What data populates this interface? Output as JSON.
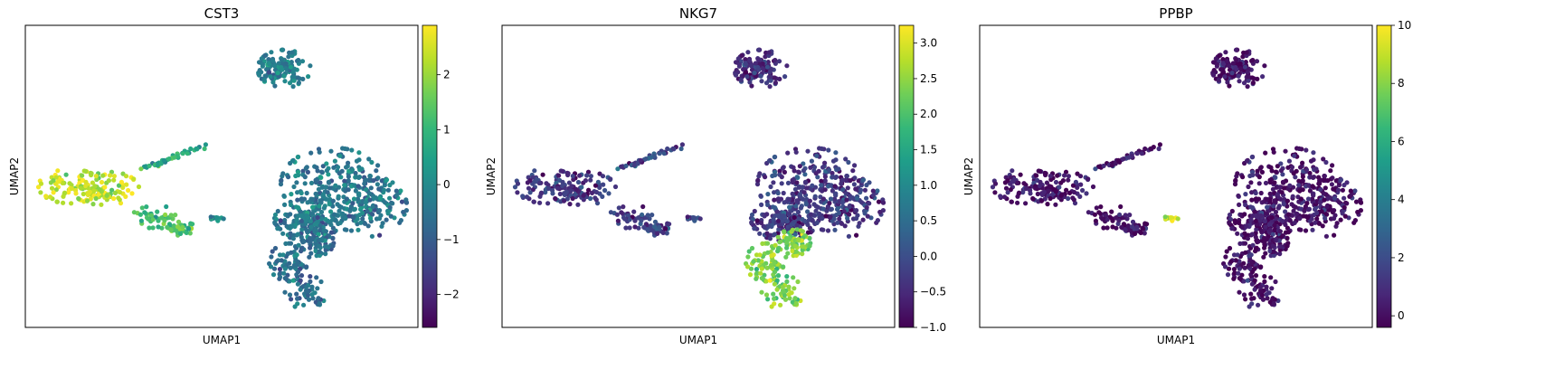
{
  "colormap": "viridis",
  "colors": {
    "viridis_stops": [
      "#440154",
      "#482878",
      "#3e4a89",
      "#31688e",
      "#26828e",
      "#1f9e89",
      "#35b779",
      "#6ece58",
      "#b5de2b",
      "#fde725"
    ]
  },
  "chart_data": [
    {
      "type": "scatter",
      "title": "CST3",
      "xlabel": "UMAP1",
      "ylabel": "UMAP2",
      "colorbar": {
        "vmin": -2.6,
        "vmax": 2.9,
        "ticks": [
          2,
          1,
          0,
          -1,
          -2
        ],
        "tick_labels": [
          "2",
          "1",
          "0",
          "−1",
          "−2"
        ]
      },
      "cluster_values": {
        "top": -0.3,
        "streak": 0.7,
        "left": 2.3,
        "leftlow": 1.3,
        "tail": 0.2,
        "right": -0.4,
        "bottom": -0.6
      }
    },
    {
      "type": "scatter",
      "title": "NKG7",
      "xlabel": "UMAP1",
      "ylabel": "UMAP2",
      "colorbar": {
        "vmin": -1.0,
        "vmax": 3.25,
        "ticks": [
          3.0,
          2.5,
          2.0,
          1.5,
          1.0,
          0.5,
          0.0,
          -0.5,
          -1.0
        ],
        "tick_labels": [
          "3.0",
          "2.5",
          "2.0",
          "1.5",
          "1.0",
          "0.5",
          "0.0",
          "−0.5",
          "−1.0"
        ]
      },
      "cluster_values": {
        "top": -0.5,
        "streak": -0.1,
        "left": -0.4,
        "leftlow": -0.2,
        "tail": 0.0,
        "right": -0.3,
        "bottom": 2.4
      }
    },
    {
      "type": "scatter",
      "title": "PPBP",
      "xlabel": "UMAP1",
      "ylabel": "UMAP2",
      "colorbar": {
        "vmin": -0.4,
        "vmax": 10.0,
        "ticks": [
          10,
          8,
          6,
          4,
          2,
          0
        ],
        "tick_labels": [
          "10",
          "8",
          "6",
          "4",
          "2",
          "0"
        ]
      },
      "cluster_values": {
        "top": 0.0,
        "streak": 0.1,
        "left": 0.0,
        "leftlow": 0.0,
        "tail": 9.5,
        "right": 0.1,
        "bottom": 0.0
      }
    }
  ]
}
